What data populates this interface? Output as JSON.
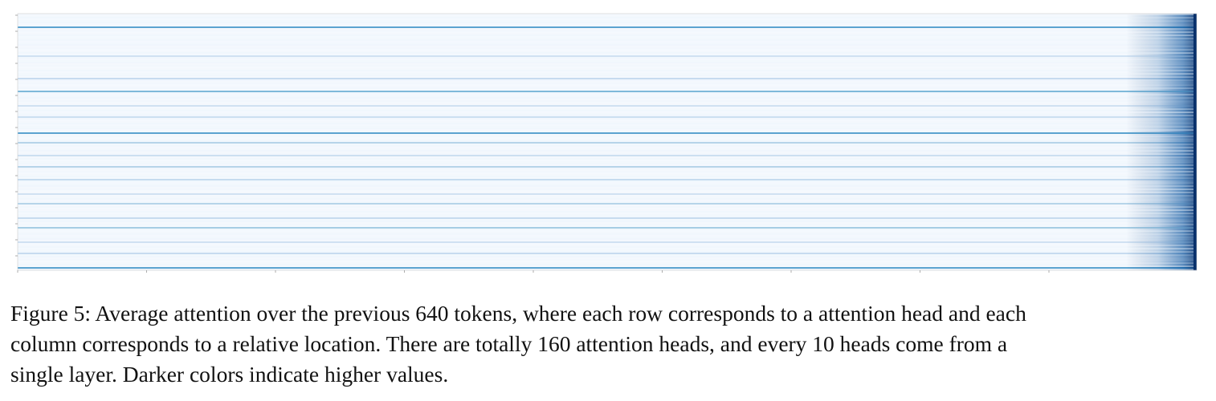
{
  "figure": {
    "caption_lines": [
      "Figure 5: Average attention over the previous 640 tokens, where each row corresponds to a attention head and each",
      "column corresponds to a relative location. There are totally 160 attention heads, and every 10 heads come from a",
      "single layer. Darker colors indicate higher values."
    ]
  },
  "chart_data": {
    "type": "heatmap",
    "title": "",
    "xlabel": "",
    "ylabel": "",
    "rows": 160,
    "columns": 640,
    "row_meaning": "attention head",
    "column_meaning": "relative location",
    "heads_per_layer": 10,
    "colormap": [
      "#f7fbff",
      "#deebf7",
      "#c6dbef",
      "#9ecae1",
      "#6baed6",
      "#4292c6",
      "#2171b5",
      "#08519c",
      "#08306b"
    ],
    "value_range": [
      0,
      1
    ],
    "x_ticks_count": 9,
    "y_ticks_count": 16,
    "grid": false,
    "legend": "none",
    "highlighted_rows": [
      {
        "row": 8,
        "intensity": 0.55
      },
      {
        "row": 26,
        "intensity": 0.2
      },
      {
        "row": 40,
        "intensity": 0.25
      },
      {
        "row": 48,
        "intensity": 0.45
      },
      {
        "row": 57,
        "intensity": 0.2
      },
      {
        "row": 64,
        "intensity": 0.22
      },
      {
        "row": 74,
        "intensity": 0.55
      },
      {
        "row": 80,
        "intensity": 0.3
      },
      {
        "row": 88,
        "intensity": 0.22
      },
      {
        "row": 95,
        "intensity": 0.3
      },
      {
        "row": 103,
        "intensity": 0.25
      },
      {
        "row": 112,
        "intensity": 0.2
      },
      {
        "row": 118,
        "intensity": 0.3
      },
      {
        "row": 127,
        "intensity": 0.25
      },
      {
        "row": 133,
        "intensity": 0.35
      },
      {
        "row": 142,
        "intensity": 0.2
      },
      {
        "row": 149,
        "intensity": 0.25
      },
      {
        "row": 158,
        "intensity": 0.55
      }
    ],
    "recent_context_intensity": 0.9
  }
}
